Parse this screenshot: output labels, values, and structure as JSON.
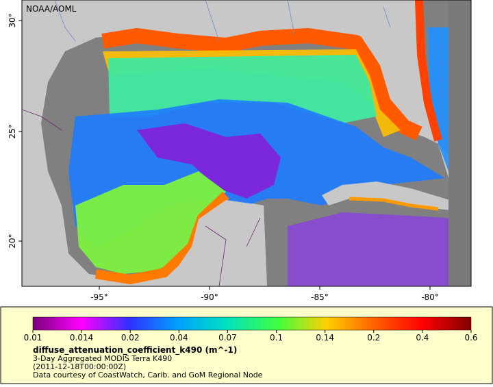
{
  "map": {
    "credit": "NOAA/AOML",
    "lon_ticks": [
      "-95°",
      "-90°",
      "-85°",
      "-80°"
    ],
    "lat_ticks": [
      "30°",
      "25°",
      "20°"
    ]
  },
  "legend": {
    "colorbar_ticks": [
      "0.01",
      "0.014",
      "0.02",
      "0.04",
      "0.07",
      "0.1",
      "0.14",
      "0.2",
      "0.4",
      "0.6"
    ],
    "variable": "diffuse_attenuation_coefficient_k490 (m^-1)",
    "lines": [
      "3-Day Aggregated MODIS Terra K490",
      "(2011-12-18T00:00:00Z)",
      "Data courtesy of CoastWatch, Carib. and GoM Regional Node"
    ]
  }
}
